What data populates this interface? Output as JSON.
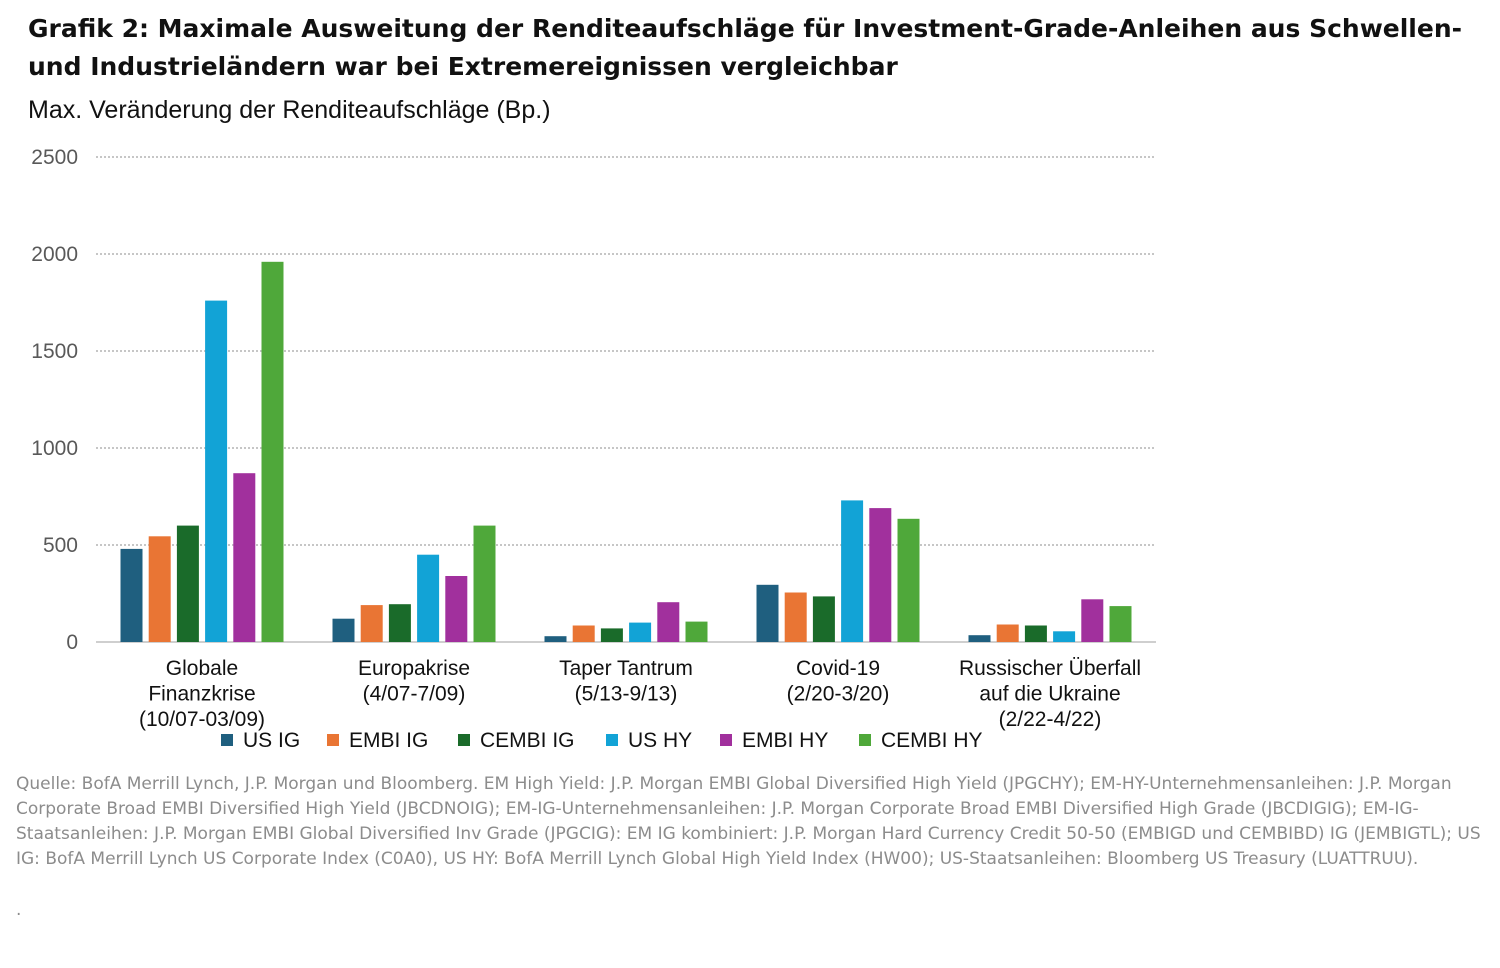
{
  "title": "Grafik 2: Maximale Ausweitung der Renditeaufschläge für Investment-Grade-Anleihen aus Schwellen- und Industrieländern war bei Extremereignissen vergleichbar",
  "source_note": "Quelle: BofA Merrill Lynch, J.P. Morgan und Bloomberg. EM High Yield: J.P. Morgan EMBI Global Diversified High Yield (JPGCHY); EM-HY-Unternehmensanleihen: J.P. Morgan Corporate Broad EMBI Diversified High Yield (JBCDNOIG); EM-IG-Unternehmensanleihen: J.P. Morgan Corporate Broad EMBI Diversified High Grade (JBCDIGIG); EM-IG-Staatsanleihen: J.P. Morgan EMBI Global Diversified Inv Grade (JPGCIG): EM IG kombiniert: J.P. Morgan Hard Currency Credit 50-50 (EMBIGD und CEMBIBD) IG (JEMBIGTL); US IG: BofA Merrill Lynch US Corporate Index (C0A0), US HY: BofA Merrill Lynch Global High Yield Index (HW00); US-Staatsanleihen: Bloomberg US Treasury (LUATTRUU).",
  "trailing_mark": ".",
  "chart_data": {
    "type": "bar",
    "ylabel": "Max. Veränderung der Renditeaufschläge (Bp.)",
    "ylim": [
      0,
      2500
    ],
    "yticks": [
      0,
      500,
      1000,
      1500,
      2000,
      2500
    ],
    "grid": "horizontal-dotted",
    "legend_position": "bottom",
    "categories": [
      [
        "Globale",
        "Finanzkrise",
        "(10/07-03/09)"
      ],
      [
        "Europakrise",
        "(4/07-7/09)"
      ],
      [
        "Taper Tantrum",
        "(5/13-9/13)"
      ],
      [
        "Covid-19",
        "(2/20-3/20)"
      ],
      [
        "Russischer Überfall",
        "auf die Ukraine",
        "(2/22-4/22)"
      ]
    ],
    "series": [
      {
        "name": "US IG",
        "color": "#1f5f7f",
        "values": [
          480,
          120,
          30,
          295,
          35
        ]
      },
      {
        "name": "EMBI IG",
        "color": "#e97534",
        "values": [
          545,
          190,
          85,
          255,
          90
        ]
      },
      {
        "name": "CEMBI IG",
        "color": "#1a6b2a",
        "values": [
          600,
          195,
          70,
          235,
          85
        ]
      },
      {
        "name": "US HY",
        "color": "#12a3d6",
        "values": [
          1760,
          450,
          100,
          730,
          55
        ]
      },
      {
        "name": "EMBI HY",
        "color": "#a1309d",
        "values": [
          870,
          340,
          205,
          690,
          220
        ]
      },
      {
        "name": "CEMBI HY",
        "color": "#4fa83a",
        "values": [
          1960,
          600,
          105,
          635,
          185
        ]
      }
    ]
  }
}
